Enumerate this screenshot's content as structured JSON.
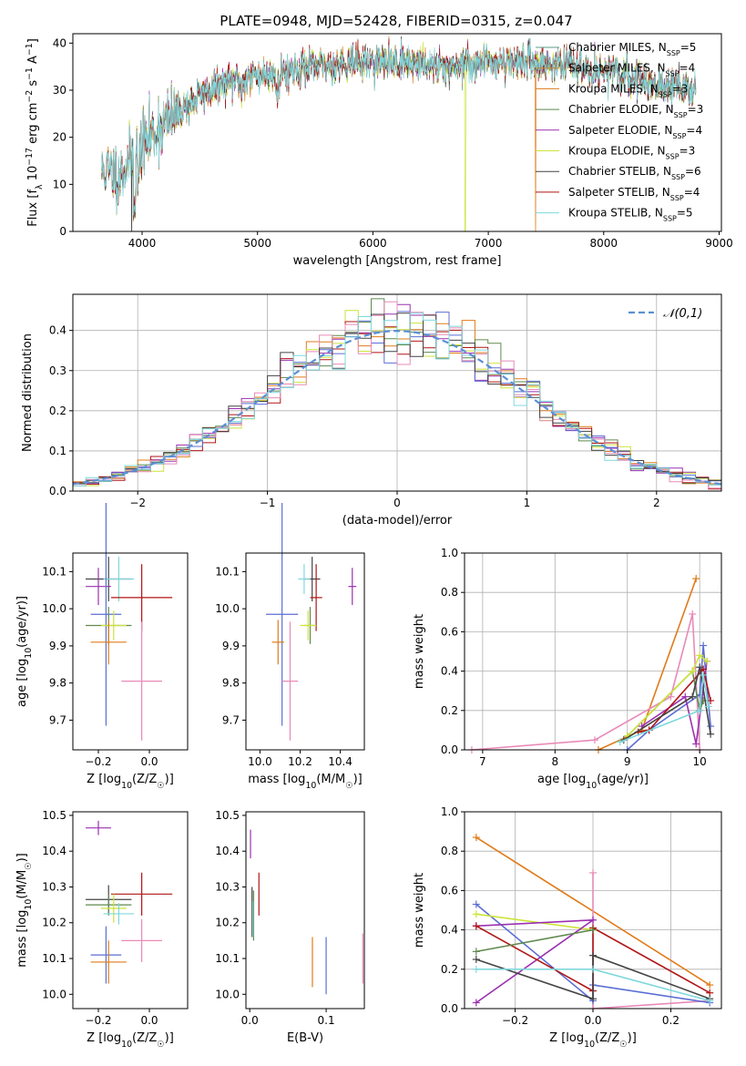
{
  "title": "PLATE=0948, MJD=52428, FIBERID=0315, z=0.047",
  "models": [
    {
      "name": "Chabrier MILES",
      "n": "5",
      "color": "#5a9d8a"
    },
    {
      "name": "Salpeter MILES",
      "n": "4",
      "color": "#bf8f3a"
    },
    {
      "name": "Kroupa MILES",
      "n": "3",
      "color": "#e07b1a"
    },
    {
      "name": "Chabrier ELODIE",
      "n": "3",
      "color": "#5f8a4e"
    },
    {
      "name": "Salpeter ELODIE",
      "n": "4",
      "color": "#9b30b0"
    },
    {
      "name": "Kroupa ELODIE",
      "n": "3",
      "color": "#cde33a"
    },
    {
      "name": "Chabrier STELIB",
      "n": "6",
      "color": "#444444"
    },
    {
      "name": "Salpeter STELIB",
      "n": "4",
      "color": "#b01515"
    },
    {
      "name": "Kroupa STELIB",
      "n": "5",
      "color": "#7fd8dc"
    }
  ],
  "chart_data": [
    {
      "id": "spectrum",
      "type": "line",
      "xlabel": "wavelength [Angstrom, rest frame]",
      "ylabel": "Flux [f_λ 10^-17 erg cm^-2 s^-1 A^-1]",
      "xlim": [
        3400,
        9020
      ],
      "ylim": [
        0,
        42
      ],
      "xticks": [
        4000,
        5000,
        6000,
        7000,
        8000,
        9000
      ],
      "yticks": [
        0,
        10,
        20,
        30,
        40
      ],
      "x_range": [
        3650,
        8800
      ],
      "continuum": [
        [
          3650,
          13
        ],
        [
          3800,
          12
        ],
        [
          3950,
          17
        ],
        [
          4100,
          21
        ],
        [
          4300,
          25
        ],
        [
          4500,
          29
        ],
        [
          4800,
          32
        ],
        [
          5000,
          33
        ],
        [
          5200,
          34
        ],
        [
          5500,
          35
        ],
        [
          5800,
          36
        ],
        [
          6000,
          36
        ],
        [
          6300,
          36
        ],
        [
          6600,
          35
        ],
        [
          7000,
          36
        ],
        [
          7400,
          36
        ],
        [
          7800,
          35
        ],
        [
          8200,
          33
        ],
        [
          8500,
          31
        ],
        [
          8800,
          30
        ]
      ],
      "dropouts": [
        {
          "x": 3910,
          "series": "Chabrier STELIB"
        },
        {
          "x": 6800,
          "series": "Kroupa ELODIE"
        },
        {
          "x": 7410,
          "series": "Kroupa MILES"
        }
      ]
    },
    {
      "id": "residuals",
      "type": "histogram",
      "xlabel": "(data-model)/error",
      "ylabel": "Normed distribution",
      "xlim": [
        -2.5,
        2.5
      ],
      "ylim": [
        0,
        0.49
      ],
      "xticks": [
        -2,
        -1,
        0,
        1,
        2
      ],
      "yticks": [
        0,
        0.1,
        0.2,
        0.3,
        0.4
      ],
      "bin_width": 0.1,
      "legend": "𝒩(0,1)",
      "legend_color": "#5b8fd4",
      "series_colors": [
        "#e07b1a",
        "#9b30b0",
        "#5f8a4e",
        "#cde33a",
        "#b01515",
        "#5b6fd4",
        "#e88ab8",
        "#444444",
        "#7fd8dc"
      ]
    },
    {
      "id": "age_Z",
      "type": "errorbar",
      "xlabel": "Z [log10(Z/Z☉)]",
      "ylabel": "age  [log10(age/yr)]",
      "xlim": [
        -0.3,
        0.15
      ],
      "ylim": [
        9.62,
        10.15
      ],
      "xticks": [
        -0.2,
        0.0
      ],
      "yticks": [
        9.7,
        9.8,
        9.9,
        10.0,
        10.1
      ],
      "points": [
        {
          "x": -0.16,
          "y": 10.08,
          "xerr": 0.09,
          "yerr": 0.06,
          "color": "#444444"
        },
        {
          "x": -0.12,
          "y": 10.08,
          "xerr": 0.06,
          "yerr": 0.06,
          "color": "#7fd8dc"
        },
        {
          "x": -0.2,
          "y": 10.06,
          "xerr": 0.05,
          "yerr": 0.05,
          "color": "#9b30b0"
        },
        {
          "x": -0.03,
          "y": 10.03,
          "xerr": 0.12,
          "yerr": 0.09,
          "color": "#b01515"
        },
        {
          "x": -0.17,
          "y": 9.985,
          "xerr": 0.06,
          "yerr": 0.3,
          "color": "#5b6fd4"
        },
        {
          "x": -0.16,
          "y": 9.955,
          "xerr": 0.09,
          "yerr": 0.05,
          "color": "#5f8a4e"
        },
        {
          "x": -0.14,
          "y": 9.955,
          "xerr": 0.05,
          "yerr": 0.04,
          "color": "#cde33a"
        },
        {
          "x": -0.16,
          "y": 9.91,
          "xerr": 0.07,
          "yerr": 0.06,
          "color": "#e07b1a"
        },
        {
          "x": -0.03,
          "y": 9.805,
          "xerr": 0.08,
          "yerr": 0.16,
          "color": "#e88ab8"
        }
      ]
    },
    {
      "id": "age_mass",
      "type": "errorbar",
      "xlabel": "mass [log10(M/M☉)]",
      "ylabel": "",
      "xlim": [
        9.93,
        10.52
      ],
      "ylim": [
        9.62,
        10.15
      ],
      "xticks": [
        10.0,
        10.2,
        10.4
      ],
      "yticks": [
        9.7,
        9.8,
        9.9,
        10.0,
        10.1
      ],
      "points": [
        {
          "x": 10.26,
          "y": 10.08,
          "xerr": 0.04,
          "yerr": 0.06,
          "color": "#444444"
        },
        {
          "x": 10.22,
          "y": 10.08,
          "xerr": 0.03,
          "yerr": 0.04,
          "color": "#7fd8dc"
        },
        {
          "x": 10.46,
          "y": 10.06,
          "xerr": 0.02,
          "yerr": 0.05,
          "color": "#9b30b0"
        },
        {
          "x": 10.28,
          "y": 10.03,
          "xerr": 0.03,
          "yerr": 0.09,
          "color": "#b01515"
        },
        {
          "x": 10.11,
          "y": 9.985,
          "xerr": 0.08,
          "yerr": 0.3,
          "color": "#5b6fd4"
        },
        {
          "x": 10.25,
          "y": 9.955,
          "xerr": 0.03,
          "yerr": 0.05,
          "color": "#5f8a4e"
        },
        {
          "x": 10.24,
          "y": 9.955,
          "xerr": 0.04,
          "yerr": 0.04,
          "color": "#cde33a"
        },
        {
          "x": 10.09,
          "y": 9.91,
          "xerr": 0.03,
          "yerr": 0.06,
          "color": "#e07b1a"
        },
        {
          "x": 10.15,
          "y": 9.805,
          "xerr": 0.04,
          "yerr": 0.16,
          "color": "#e88ab8"
        }
      ]
    },
    {
      "id": "weight_age",
      "type": "line",
      "xlabel": "age  [log10(age/yr)]",
      "ylabel": "mass weight",
      "xlim": [
        6.75,
        10.3
      ],
      "ylim": [
        0,
        1.0
      ],
      "xticks": [
        7,
        8,
        9,
        10
      ],
      "yticks": [
        0.0,
        0.2,
        0.4,
        0.6,
        0.8,
        1.0
      ],
      "series": [
        {
          "color": "#e07b1a",
          "points": [
            [
              8.6,
              0.0
            ],
            [
              9.2,
              0.1
            ],
            [
              9.95,
              0.87
            ]
          ]
        },
        {
          "color": "#e88ab8",
          "points": [
            [
              6.85,
              0.0
            ],
            [
              8.55,
              0.05
            ],
            [
              9.6,
              0.27
            ],
            [
              9.9,
              0.69
            ],
            [
              10.0,
              0.0
            ]
          ]
        },
        {
          "color": "#5b6fd4",
          "points": [
            [
              9.0,
              0.0
            ],
            [
              9.3,
              0.1
            ],
            [
              10.0,
              0.28
            ],
            [
              10.05,
              0.53
            ],
            [
              10.15,
              0.12
            ]
          ]
        },
        {
          "color": "#9b30b0",
          "points": [
            [
              9.2,
              0.12
            ],
            [
              9.8,
              0.27
            ],
            [
              9.95,
              0.03
            ],
            [
              10.1,
              0.45
            ]
          ]
        },
        {
          "color": "#b01515",
          "points": [
            [
              9.15,
              0.09
            ],
            [
              9.3,
              0.1
            ],
            [
              10.05,
              0.41
            ],
            [
              10.15,
              0.25
            ]
          ]
        },
        {
          "color": "#5f8a4e",
          "points": [
            [
              9.0,
              0.07
            ],
            [
              9.9,
              0.4
            ],
            [
              10.0,
              0.2
            ],
            [
              10.05,
              0.25
            ]
          ]
        },
        {
          "color": "#cde33a",
          "points": [
            [
              9.0,
              0.07
            ],
            [
              9.9,
              0.4
            ],
            [
              10.0,
              0.48
            ],
            [
              10.1,
              0.45
            ]
          ]
        },
        {
          "color": "#444444",
          "points": [
            [
              8.95,
              0.05
            ],
            [
              9.9,
              0.27
            ],
            [
              10.0,
              0.42
            ],
            [
              10.15,
              0.08
            ]
          ]
        },
        {
          "color": "#7fd8dc",
          "points": [
            [
              8.9,
              0.04
            ],
            [
              10.0,
              0.2
            ],
            [
              10.05,
              0.38
            ],
            [
              10.12,
              0.22
            ]
          ]
        }
      ]
    },
    {
      "id": "mass_Z",
      "type": "errorbar",
      "xlabel": "Z [log10(Z/Z☉)]",
      "ylabel": "mass [log10(M/M☉)]",
      "xlim": [
        -0.3,
        0.15
      ],
      "ylim": [
        9.96,
        10.51
      ],
      "xticks": [
        -0.2,
        0.0
      ],
      "yticks": [
        10.0,
        10.1,
        10.2,
        10.3,
        10.4,
        10.5
      ],
      "points": [
        {
          "x": -0.2,
          "y": 10.465,
          "xerr": 0.05,
          "yerr": 0.02,
          "color": "#9b30b0"
        },
        {
          "x": -0.03,
          "y": 10.28,
          "xerr": 0.12,
          "yerr": 0.06,
          "color": "#b01515"
        },
        {
          "x": -0.16,
          "y": 10.265,
          "xerr": 0.09,
          "yerr": 0.04,
          "color": "#444444"
        },
        {
          "x": -0.16,
          "y": 10.25,
          "xerr": 0.09,
          "yerr": 0.03,
          "color": "#5f8a4e"
        },
        {
          "x": -0.14,
          "y": 10.24,
          "xerr": 0.05,
          "yerr": 0.04,
          "color": "#cde33a"
        },
        {
          "x": -0.12,
          "y": 10.225,
          "xerr": 0.06,
          "yerr": 0.03,
          "color": "#7fd8dc"
        },
        {
          "x": -0.03,
          "y": 10.15,
          "xerr": 0.08,
          "yerr": 0.06,
          "color": "#e88ab8"
        },
        {
          "x": -0.17,
          "y": 10.11,
          "xerr": 0.06,
          "yerr": 0.08,
          "color": "#5b6fd4"
        },
        {
          "x": -0.16,
          "y": 10.09,
          "xerr": 0.07,
          "yerr": 0.06,
          "color": "#e07b1a"
        }
      ]
    },
    {
      "id": "mass_EBV",
      "type": "errorbar",
      "xlabel": "E(B-V)",
      "ylabel": "",
      "xlim": [
        -0.005,
        0.15
      ],
      "ylim": [
        9.96,
        10.51
      ],
      "xticks": [
        0.0,
        0.1
      ],
      "yticks": [
        10.0,
        10.1,
        10.2,
        10.3,
        10.4,
        10.5
      ],
      "points": [
        {
          "x": 0.001,
          "y": 10.42,
          "xerr": 0,
          "yerr": 0.04,
          "color": "#9b30b0"
        },
        {
          "x": 0.003,
          "y": 10.23,
          "xerr": 0,
          "yerr": 0.07,
          "color": "#444444"
        },
        {
          "x": 0.005,
          "y": 10.22,
          "xerr": 0,
          "yerr": 0.07,
          "color": "#5f8a4e"
        },
        {
          "x": 0.004,
          "y": 10.21,
          "xerr": 0,
          "yerr": 0.05,
          "color": "#7fd8dc"
        },
        {
          "x": 0.012,
          "y": 10.28,
          "xerr": 0,
          "yerr": 0.06,
          "color": "#b01515"
        },
        {
          "x": 0.082,
          "y": 10.09,
          "xerr": 0,
          "yerr": 0.07,
          "color": "#e07b1a"
        },
        {
          "x": 0.1,
          "y": 10.08,
          "xerr": 0,
          "yerr": 0.08,
          "color": "#5b6fd4"
        },
        {
          "x": 0.148,
          "y": 10.1,
          "xerr": 0,
          "yerr": 0.07,
          "color": "#e88ab8"
        }
      ]
    },
    {
      "id": "weight_Z",
      "type": "line",
      "xlabel": "Z [log10(Z/Z☉)]",
      "ylabel": "mass weight",
      "xlim": [
        -0.33,
        0.33
      ],
      "ylim": [
        0,
        1.0
      ],
      "xticks": [
        -0.2,
        0.0,
        0.2
      ],
      "yticks": [
        0.0,
        0.2,
        0.4,
        0.6,
        0.8,
        1.0
      ],
      "series": [
        {
          "color": "#e07b1a",
          "points": [
            [
              -0.3,
              0.87
            ],
            [
              0.3,
              0.12
            ]
          ]
        },
        {
          "color": "#e88ab8",
          "points": [
            [
              0.0,
              0.69
            ],
            [
              0.0,
              0.0
            ],
            [
              0.3,
              0.04
            ]
          ]
        },
        {
          "color": "#5b6fd4",
          "points": [
            [
              -0.3,
              0.53
            ],
            [
              0.0,
              0.04
            ],
            [
              0.0,
              0.12
            ],
            [
              0.3,
              0.03
            ]
          ]
        },
        {
          "color": "#cde33a",
          "points": [
            [
              -0.3,
              0.48
            ],
            [
              0.0,
              0.4
            ]
          ]
        },
        {
          "color": "#9b30b0",
          "points": [
            [
              -0.3,
              0.03
            ],
            [
              0.0,
              0.45
            ],
            [
              -0.3,
              0.42
            ]
          ]
        },
        {
          "color": "#b01515",
          "points": [
            [
              -0.3,
              0.42
            ],
            [
              0.0,
              0.09
            ],
            [
              0.0,
              0.41
            ],
            [
              0.3,
              0.08
            ]
          ]
        },
        {
          "color": "#5f8a4e",
          "points": [
            [
              -0.3,
              0.29
            ],
            [
              0.0,
              0.4
            ]
          ]
        },
        {
          "color": "#444444",
          "points": [
            [
              -0.3,
              0.25
            ],
            [
              0.0,
              0.05
            ],
            [
              0.0,
              0.27
            ],
            [
              0.3,
              0.05
            ]
          ]
        },
        {
          "color": "#7fd8dc",
          "points": [
            [
              -0.3,
              0.2
            ],
            [
              0.0,
              0.2
            ],
            [
              0.3,
              0.04
            ]
          ]
        }
      ]
    }
  ]
}
